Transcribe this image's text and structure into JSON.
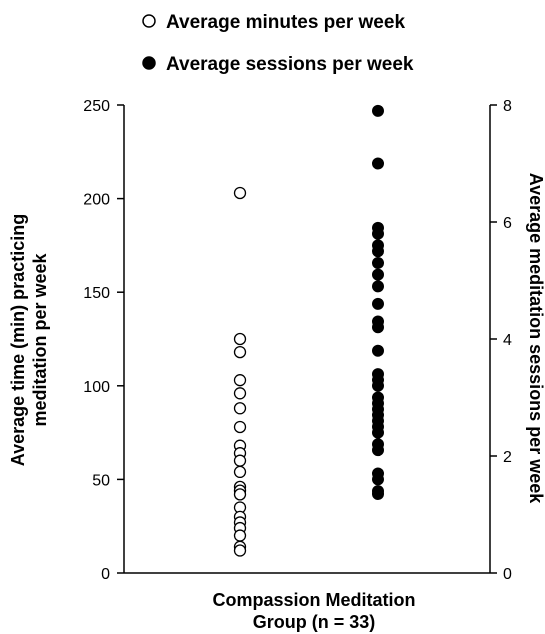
{
  "chart_data": {
    "type": "scatter",
    "title": "",
    "group_label": [
      "Compassion Meditation",
      "Group (n = 33)"
    ],
    "left_axis": {
      "label": [
        "Average time (min) practicing",
        "meditation per week"
      ],
      "range": [
        0,
        250
      ],
      "ticks": [
        0,
        50,
        100,
        150,
        200,
        250
      ]
    },
    "right_axis": {
      "label": "Average meditation sessions per week",
      "range": [
        0,
        8
      ],
      "ticks": [
        0,
        2,
        4,
        6,
        8
      ]
    },
    "legend": {
      "position": "top",
      "entries": [
        {
          "label": "Average minutes per week",
          "marker": "open-circle"
        },
        {
          "label": "Average sessions per week",
          "marker": "filled-circle"
        }
      ]
    },
    "grid": false,
    "series": [
      {
        "name": "Average minutes per week",
        "axis": "left",
        "marker": "open-circle",
        "values": [
          203,
          125,
          118,
          103,
          96,
          88,
          78,
          68,
          64,
          60,
          54,
          46,
          44,
          42,
          35,
          30,
          27,
          24,
          20,
          14,
          12
        ]
      },
      {
        "name": "Average sessions per week",
        "axis": "right",
        "marker": "filled-circle",
        "values": [
          7.9,
          7.0,
          5.9,
          5.8,
          5.6,
          5.5,
          5.3,
          5.1,
          4.9,
          4.6,
          4.3,
          4.2,
          3.8,
          3.4,
          3.3,
          3.2,
          3.0,
          2.9,
          2.8,
          2.7,
          2.6,
          2.5,
          2.4,
          2.2,
          2.1,
          1.7,
          1.6,
          1.4,
          1.35
        ]
      }
    ],
    "colors": {
      "marker": "#000000",
      "open_fill": "#ffffff",
      "axis": "#000000"
    }
  }
}
